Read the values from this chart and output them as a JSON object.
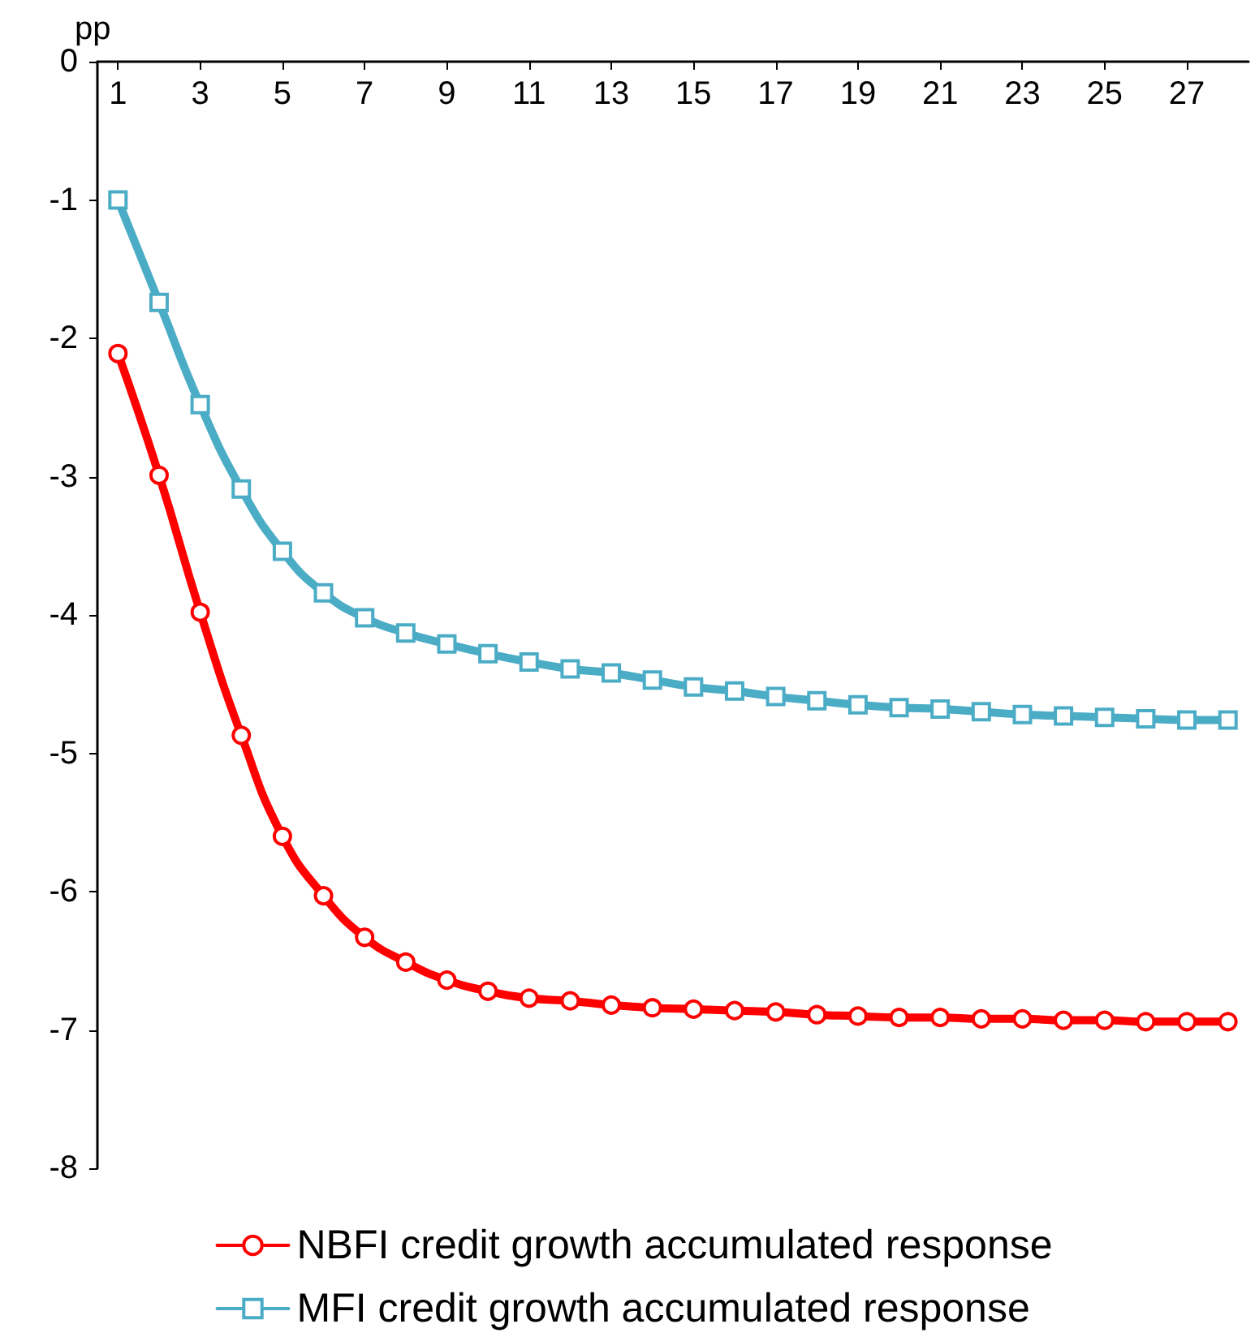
{
  "chart_data": {
    "type": "line",
    "ylabel": "pp",
    "x": [
      1,
      2,
      3,
      4,
      5,
      6,
      7,
      8,
      9,
      10,
      11,
      12,
      13,
      14,
      15,
      16,
      17,
      18,
      19,
      20,
      21,
      22,
      23,
      24,
      25,
      26,
      27,
      28
    ],
    "xlim": [
      0.5,
      28.5
    ],
    "xticks": [
      1,
      3,
      5,
      7,
      9,
      11,
      13,
      15,
      17,
      19,
      21,
      23,
      25,
      27
    ],
    "ylim": [
      -8,
      0
    ],
    "yticks": [
      -8,
      -7,
      -6,
      -5,
      -4,
      -3,
      -2,
      -1,
      0
    ],
    "grid": false,
    "legend": "bottom",
    "line_style": "solid",
    "series": [
      {
        "name": "NBFI credit growth accumulated response",
        "color": "#ff0000",
        "marker": "circle",
        "values": [
          -2.11,
          -2.99,
          -3.98,
          -4.87,
          -5.6,
          -6.03,
          -6.33,
          -6.51,
          -6.64,
          -6.72,
          -6.77,
          -6.79,
          -6.82,
          -6.84,
          -6.85,
          -6.86,
          -6.87,
          -6.89,
          -6.9,
          -6.91,
          -6.91,
          -6.92,
          -6.92,
          -6.93,
          -6.93,
          -6.94,
          -6.94,
          -6.94
        ]
      },
      {
        "name": "MFI credit growth accumulated response",
        "color": "#4bacc6",
        "marker": "square",
        "values": [
          -1.0,
          -1.74,
          -2.48,
          -3.09,
          -3.54,
          -3.84,
          -4.02,
          -4.13,
          -4.21,
          -4.28,
          -4.34,
          -4.39,
          -4.42,
          -4.47,
          -4.52,
          -4.55,
          -4.59,
          -4.62,
          -4.65,
          -4.67,
          -4.68,
          -4.7,
          -4.72,
          -4.73,
          -4.74,
          -4.75,
          -4.76,
          -4.76
        ]
      }
    ]
  }
}
